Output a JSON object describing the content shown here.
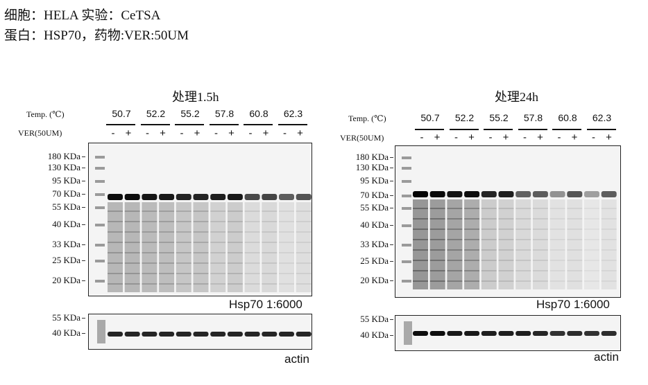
{
  "header": {
    "line1": "细胞：HELA 实验：CeTSA",
    "line2": "蛋白：HSP70，药物:VER:50UM"
  },
  "row_labels": {
    "temp": "Temp. (℃)",
    "drug": "VER(50UM)"
  },
  "temperatures": [
    "50.7",
    "52.2",
    "55.2",
    "57.8",
    "60.8",
    "62.3"
  ],
  "signs": [
    "-",
    "+"
  ],
  "panels": [
    {
      "title": "处理1.5h",
      "markers": [
        "180 KDa",
        "130 KDa",
        "95 KDa",
        "70 KDa",
        "55 KDa",
        "40 KDa",
        "33 KDa",
        "25 KDa",
        "20 KDa"
      ],
      "antibody_label": "Hsp70 1:6000",
      "actin_markers": [
        "55 KDa",
        "40 KDa"
      ],
      "actin_label": "actin",
      "hsp70_band_intensity": [
        0.95,
        0.95,
        0.92,
        0.9,
        0.86,
        0.86,
        0.88,
        0.9,
        0.7,
        0.72,
        0.62,
        0.66
      ],
      "smear_intensity": [
        0.55,
        0.55,
        0.5,
        0.48,
        0.42,
        0.42,
        0.32,
        0.35,
        0.22,
        0.25,
        0.18,
        0.2
      ],
      "actin_intensity": [
        0.85,
        0.85,
        0.85,
        0.85,
        0.85,
        0.85,
        0.85,
        0.85,
        0.85,
        0.85,
        0.85,
        0.85
      ]
    },
    {
      "title": "处理24h",
      "markers": [
        "180 KDa",
        "130 KDa",
        "95 KDa",
        "70 KDa",
        "55 KDa",
        "40 KDa",
        "33 KDa",
        "25 KDa",
        "20 KDa"
      ],
      "antibody_label": "Hsp70 1:6000",
      "actin_markers": [
        "55 KDa",
        "40 KDa"
      ],
      "actin_label": "actin",
      "hsp70_band_intensity": [
        0.98,
        0.96,
        0.92,
        0.95,
        0.85,
        0.88,
        0.6,
        0.62,
        0.4,
        0.65,
        0.35,
        0.62
      ],
      "smear_intensity": [
        0.85,
        0.8,
        0.7,
        0.65,
        0.35,
        0.32,
        0.25,
        0.22,
        0.15,
        0.18,
        0.12,
        0.15
      ],
      "actin_intensity": [
        0.95,
        0.95,
        0.9,
        0.9,
        0.88,
        0.88,
        0.88,
        0.85,
        0.8,
        0.82,
        0.8,
        0.82
      ]
    }
  ]
}
